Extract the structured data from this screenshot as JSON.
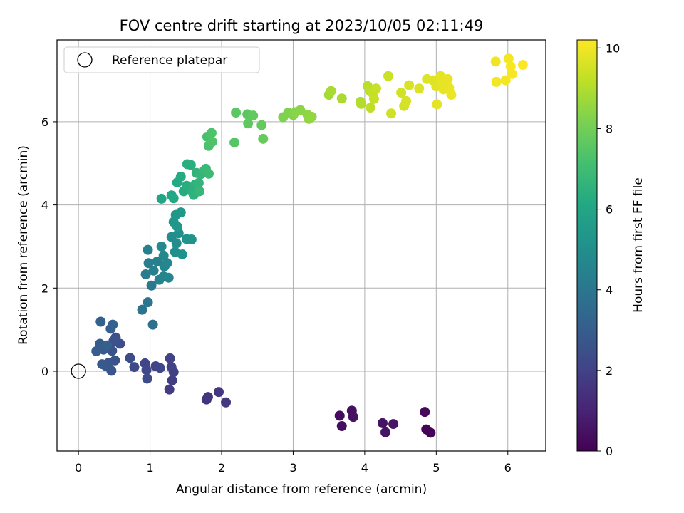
{
  "chart_data": {
    "type": "scatter",
    "title": "FOV centre drift starting at 2023/10/05 02:11:49",
    "xlabel": "Angular distance from reference (arcmin)",
    "ylabel": "Rotation from reference (arcmin)",
    "xlim": [
      -0.3,
      6.53
    ],
    "ylim": [
      -1.92,
      7.97
    ],
    "xticks": [
      0,
      1,
      2,
      3,
      4,
      5,
      6
    ],
    "yticks": [
      0,
      2,
      4,
      6
    ],
    "grid": true,
    "legend": {
      "position": "top-left",
      "entries": [
        "Reference platepar"
      ]
    },
    "reference_point": {
      "x": 0,
      "y": 0
    },
    "colorbar": {
      "label": "Hours from first FF file",
      "colormap": "viridis",
      "range": [
        0,
        10.2
      ],
      "ticks": [
        0,
        2,
        4,
        6,
        8,
        10
      ]
    },
    "points": [
      {
        "x": 3.65,
        "y": -1.07,
        "c": 0.3
      },
      {
        "x": 3.68,
        "y": -1.32,
        "c": 0.35
      },
      {
        "x": 3.82,
        "y": -0.95,
        "c": 0.4
      },
      {
        "x": 3.84,
        "y": -1.1,
        "c": 0.45
      },
      {
        "x": 4.25,
        "y": -1.25,
        "c": 0.5
      },
      {
        "x": 4.29,
        "y": -1.47,
        "c": 0.55
      },
      {
        "x": 4.4,
        "y": -1.27,
        "c": 0.6
      },
      {
        "x": 4.84,
        "y": -0.98,
        "c": 0.2
      },
      {
        "x": 4.86,
        "y": -1.4,
        "c": 0.15
      },
      {
        "x": 4.92,
        "y": -1.48,
        "c": 0.1
      },
      {
        "x": 1.79,
        "y": -0.68,
        "c": 1.5
      },
      {
        "x": 1.81,
        "y": -0.62,
        "c": 1.55
      },
      {
        "x": 1.96,
        "y": -0.5,
        "c": 1.6
      },
      {
        "x": 2.06,
        "y": -0.75,
        "c": 1.65
      },
      {
        "x": 1.27,
        "y": -0.44,
        "c": 1.8
      },
      {
        "x": 1.31,
        "y": -0.22,
        "c": 1.85
      },
      {
        "x": 1.33,
        "y": -0.02,
        "c": 1.9
      },
      {
        "x": 1.28,
        "y": 0.31,
        "c": 2.0
      },
      {
        "x": 1.3,
        "y": 0.1,
        "c": 1.95
      },
      {
        "x": 1.08,
        "y": 0.12,
        "c": 2.05
      },
      {
        "x": 1.14,
        "y": 0.08,
        "c": 2.1
      },
      {
        "x": 0.93,
        "y": 0.19,
        "c": 2.15
      },
      {
        "x": 0.95,
        "y": 0.03,
        "c": 2.2
      },
      {
        "x": 0.96,
        "y": -0.18,
        "c": 2.25
      },
      {
        "x": 0.78,
        "y": 0.1,
        "c": 2.3
      },
      {
        "x": 0.72,
        "y": 0.32,
        "c": 2.35
      },
      {
        "x": 0.58,
        "y": 0.66,
        "c": 2.4
      },
      {
        "x": 0.52,
        "y": 0.81,
        "c": 2.5
      },
      {
        "x": 0.49,
        "y": 0.73,
        "c": 2.55
      },
      {
        "x": 0.47,
        "y": 0.49,
        "c": 2.6
      },
      {
        "x": 0.51,
        "y": 0.26,
        "c": 2.65
      },
      {
        "x": 0.46,
        "y": 0.01,
        "c": 2.7
      },
      {
        "x": 0.42,
        "y": 0.2,
        "c": 2.75
      },
      {
        "x": 0.38,
        "y": 0.13,
        "c": 2.8
      },
      {
        "x": 0.33,
        "y": 0.17,
        "c": 2.85
      },
      {
        "x": 0.35,
        "y": 0.52,
        "c": 2.9
      },
      {
        "x": 0.3,
        "y": 0.66,
        "c": 2.95
      },
      {
        "x": 0.25,
        "y": 0.48,
        "c": 3.0
      },
      {
        "x": 0.4,
        "y": 0.62,
        "c": 3.05
      },
      {
        "x": 0.45,
        "y": 1.02,
        "c": 3.1
      },
      {
        "x": 0.48,
        "y": 1.12,
        "c": 3.15
      },
      {
        "x": 0.31,
        "y": 1.19,
        "c": 3.2
      },
      {
        "x": 1.04,
        "y": 1.12,
        "c": 3.8
      },
      {
        "x": 0.89,
        "y": 1.48,
        "c": 3.9
      },
      {
        "x": 0.97,
        "y": 1.66,
        "c": 4.0
      },
      {
        "x": 1.02,
        "y": 2.06,
        "c": 4.1
      },
      {
        "x": 0.94,
        "y": 2.33,
        "c": 4.2
      },
      {
        "x": 0.98,
        "y": 2.6,
        "c": 4.3
      },
      {
        "x": 1.05,
        "y": 2.42,
        "c": 4.35
      },
      {
        "x": 1.1,
        "y": 2.64,
        "c": 4.4
      },
      {
        "x": 0.97,
        "y": 2.92,
        "c": 4.45
      },
      {
        "x": 1.13,
        "y": 2.2,
        "c": 4.5
      },
      {
        "x": 1.19,
        "y": 2.28,
        "c": 4.55
      },
      {
        "x": 1.2,
        "y": 2.52,
        "c": 4.6
      },
      {
        "x": 1.26,
        "y": 2.25,
        "c": 4.65
      },
      {
        "x": 1.24,
        "y": 2.6,
        "c": 4.7
      },
      {
        "x": 1.19,
        "y": 2.78,
        "c": 4.75
      },
      {
        "x": 1.16,
        "y": 3.0,
        "c": 4.8
      },
      {
        "x": 1.3,
        "y": 3.23,
        "c": 4.9
      },
      {
        "x": 1.37,
        "y": 3.08,
        "c": 4.95
      },
      {
        "x": 1.4,
        "y": 3.32,
        "c": 5.0
      },
      {
        "x": 1.35,
        "y": 2.87,
        "c": 5.05
      },
      {
        "x": 1.45,
        "y": 2.81,
        "c": 5.1
      },
      {
        "x": 1.51,
        "y": 3.18,
        "c": 5.15
      },
      {
        "x": 1.58,
        "y": 3.17,
        "c": 5.2
      },
      {
        "x": 1.33,
        "y": 3.59,
        "c": 5.3
      },
      {
        "x": 1.36,
        "y": 3.76,
        "c": 5.35
      },
      {
        "x": 1.38,
        "y": 3.48,
        "c": 5.4
      },
      {
        "x": 1.43,
        "y": 3.82,
        "c": 5.45
      },
      {
        "x": 1.16,
        "y": 4.15,
        "c": 6.0
      },
      {
        "x": 1.3,
        "y": 4.23,
        "c": 6.05
      },
      {
        "x": 1.33,
        "y": 4.16,
        "c": 6.1
      },
      {
        "x": 1.38,
        "y": 4.54,
        "c": 6.15
      },
      {
        "x": 1.43,
        "y": 4.68,
        "c": 6.2
      },
      {
        "x": 1.47,
        "y": 4.33,
        "c": 6.25
      },
      {
        "x": 1.51,
        "y": 4.46,
        "c": 6.3
      },
      {
        "x": 1.52,
        "y": 4.98,
        "c": 6.35
      },
      {
        "x": 1.57,
        "y": 4.96,
        "c": 6.4
      },
      {
        "x": 1.59,
        "y": 4.33,
        "c": 6.45
      },
      {
        "x": 1.63,
        "y": 4.49,
        "c": 6.5
      },
      {
        "x": 1.61,
        "y": 4.24,
        "c": 6.55
      },
      {
        "x": 1.65,
        "y": 4.77,
        "c": 6.6
      },
      {
        "x": 1.68,
        "y": 4.53,
        "c": 6.65
      },
      {
        "x": 1.71,
        "y": 4.74,
        "c": 6.7
      },
      {
        "x": 1.69,
        "y": 4.33,
        "c": 6.75
      },
      {
        "x": 1.76,
        "y": 4.83,
        "c": 6.8
      },
      {
        "x": 1.78,
        "y": 4.87,
        "c": 6.85
      },
      {
        "x": 1.82,
        "y": 4.75,
        "c": 6.9
      },
      {
        "x": 1.8,
        "y": 5.64,
        "c": 7.2
      },
      {
        "x": 1.82,
        "y": 5.42,
        "c": 7.25
      },
      {
        "x": 1.86,
        "y": 5.73,
        "c": 7.3
      },
      {
        "x": 1.87,
        "y": 5.52,
        "c": 7.35
      },
      {
        "x": 2.18,
        "y": 5.5,
        "c": 7.5
      },
      {
        "x": 2.2,
        "y": 6.22,
        "c": 7.55
      },
      {
        "x": 2.36,
        "y": 6.18,
        "c": 7.6
      },
      {
        "x": 2.37,
        "y": 5.96,
        "c": 7.65
      },
      {
        "x": 2.44,
        "y": 6.15,
        "c": 7.7
      },
      {
        "x": 2.56,
        "y": 5.92,
        "c": 7.75
      },
      {
        "x": 2.58,
        "y": 5.59,
        "c": 7.8
      },
      {
        "x": 2.86,
        "y": 6.11,
        "c": 8.2
      },
      {
        "x": 2.93,
        "y": 6.22,
        "c": 8.25
      },
      {
        "x": 3.0,
        "y": 6.16,
        "c": 8.3
      },
      {
        "x": 3.03,
        "y": 6.23,
        "c": 8.35
      },
      {
        "x": 3.1,
        "y": 6.28,
        "c": 8.4
      },
      {
        "x": 3.2,
        "y": 6.17,
        "c": 8.45
      },
      {
        "x": 3.22,
        "y": 6.07,
        "c": 8.5
      },
      {
        "x": 3.26,
        "y": 6.12,
        "c": 8.55
      },
      {
        "x": 3.5,
        "y": 6.65,
        "c": 8.8
      },
      {
        "x": 3.53,
        "y": 6.74,
        "c": 8.85
      },
      {
        "x": 3.68,
        "y": 6.56,
        "c": 8.9
      },
      {
        "x": 3.94,
        "y": 6.48,
        "c": 9.0
      },
      {
        "x": 3.95,
        "y": 6.43,
        "c": 9.05
      },
      {
        "x": 4.04,
        "y": 6.86,
        "c": 9.1
      },
      {
        "x": 4.07,
        "y": 6.75,
        "c": 9.15
      },
      {
        "x": 4.08,
        "y": 6.34,
        "c": 9.2
      },
      {
        "x": 4.11,
        "y": 6.69,
        "c": 9.25
      },
      {
        "x": 4.13,
        "y": 6.55,
        "c": 9.3
      },
      {
        "x": 4.16,
        "y": 6.8,
        "c": 9.35
      },
      {
        "x": 4.33,
        "y": 7.1,
        "c": 9.4
      },
      {
        "x": 4.37,
        "y": 6.2,
        "c": 9.45
      },
      {
        "x": 4.51,
        "y": 6.7,
        "c": 9.5
      },
      {
        "x": 4.55,
        "y": 6.38,
        "c": 9.55
      },
      {
        "x": 4.58,
        "y": 6.5,
        "c": 9.6
      },
      {
        "x": 4.62,
        "y": 6.88,
        "c": 9.62
      },
      {
        "x": 4.76,
        "y": 6.8,
        "c": 9.65
      },
      {
        "x": 4.87,
        "y": 7.03,
        "c": 9.7
      },
      {
        "x": 4.95,
        "y": 7.0,
        "c": 9.72
      },
      {
        "x": 5.0,
        "y": 6.85,
        "c": 9.75
      },
      {
        "x": 5.01,
        "y": 6.42,
        "c": 9.77
      },
      {
        "x": 5.06,
        "y": 7.1,
        "c": 9.8
      },
      {
        "x": 5.08,
        "y": 6.95,
        "c": 9.82
      },
      {
        "x": 5.1,
        "y": 6.78,
        "c": 9.84
      },
      {
        "x": 5.16,
        "y": 7.03,
        "c": 9.86
      },
      {
        "x": 5.18,
        "y": 6.82,
        "c": 9.88
      },
      {
        "x": 5.21,
        "y": 6.65,
        "c": 9.9
      },
      {
        "x": 5.83,
        "y": 7.45,
        "c": 10.0
      },
      {
        "x": 5.84,
        "y": 6.96,
        "c": 10.02
      },
      {
        "x": 5.97,
        "y": 7.0,
        "c": 10.05
      },
      {
        "x": 6.01,
        "y": 7.52,
        "c": 10.08
      },
      {
        "x": 6.04,
        "y": 7.33,
        "c": 10.1
      },
      {
        "x": 6.06,
        "y": 7.15,
        "c": 10.12
      },
      {
        "x": 6.21,
        "y": 7.37,
        "c": 10.15
      }
    ]
  }
}
